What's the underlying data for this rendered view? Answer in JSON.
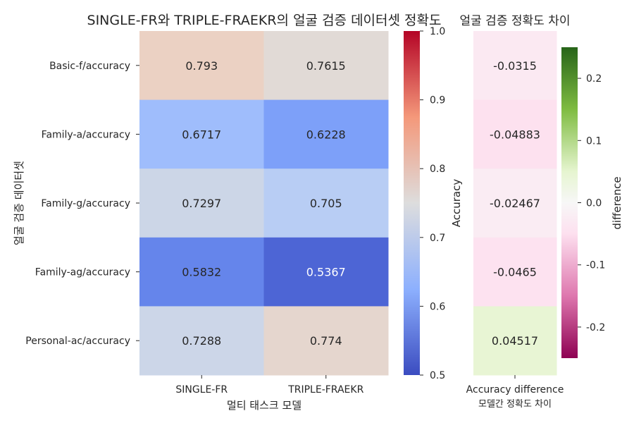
{
  "chart_data": [
    {
      "type": "heatmap",
      "title": "SINGLE-FR와 TRIPLE-FRAEKR의 얼굴 검증 데이터셋 정확도",
      "xlabel": "멀티 태스크 모델",
      "ylabel": "얼굴 검증 데이터셋",
      "columns": [
        "SINGLE-FR",
        "TRIPLE-FRAEKR"
      ],
      "rows": [
        "Basic-f/accuracy",
        "Family-a/accuracy",
        "Family-g/accuracy",
        "Family-ag/accuracy",
        "Personal-ac/accuracy"
      ],
      "values": [
        [
          0.793,
          0.7615
        ],
        [
          0.6717,
          0.6228
        ],
        [
          0.7297,
          0.705
        ],
        [
          0.5832,
          0.5367
        ],
        [
          0.7288,
          0.774
        ]
      ],
      "labels": [
        [
          "0.793",
          "0.7615"
        ],
        [
          "0.6717",
          "0.6228"
        ],
        [
          "0.7297",
          "0.705"
        ],
        [
          "0.5832",
          "0.5367"
        ],
        [
          "0.7288",
          "0.774"
        ]
      ],
      "colorbar": {
        "label": "Accuracy",
        "range": [
          0.5,
          1.0
        ],
        "ticks": [
          "0.5",
          "0.6",
          "0.7",
          "0.8",
          "0.9",
          "1.0"
        ],
        "colormap": "coolwarm"
      }
    },
    {
      "type": "heatmap",
      "title": "얼굴 검증 정확도 차이",
      "xlabel": "모델간 정확도 차이",
      "columns": [
        "Accuracy difference"
      ],
      "rows": [
        "Basic-f/accuracy",
        "Family-a/accuracy",
        "Family-g/accuracy",
        "Family-ag/accuracy",
        "Personal-ac/accuracy"
      ],
      "values": [
        [
          -0.0315
        ],
        [
          -0.04883
        ],
        [
          -0.02467
        ],
        [
          -0.0465
        ],
        [
          0.04517
        ]
      ],
      "labels": [
        [
          "-0.0315"
        ],
        [
          "-0.04883"
        ],
        [
          "-0.02467"
        ],
        [
          "-0.0465"
        ],
        [
          "0.04517"
        ]
      ],
      "colorbar": {
        "label": "difference",
        "range": [
          -0.25,
          0.25
        ],
        "ticks": [
          "0.2",
          "0.1",
          "0.0",
          "-0.1",
          "-0.2"
        ],
        "colormap": "PiYG"
      }
    }
  ]
}
